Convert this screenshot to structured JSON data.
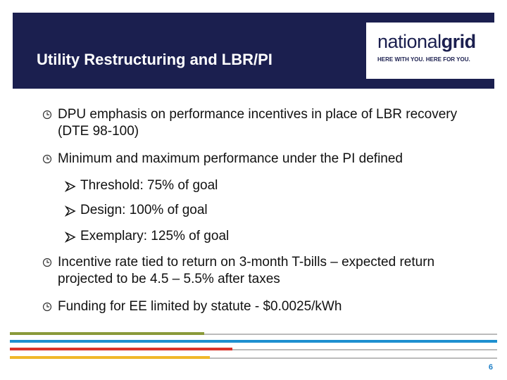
{
  "header": {
    "title": "Utility Restructuring and LBR/PI",
    "logo": {
      "brand_light": "national",
      "brand_bold": "grid",
      "tagline": "HERE WITH YOU. HERE FOR YOU."
    }
  },
  "bullets": [
    {
      "text": "DPU emphasis on performance incentives in place of LBR recovery (DTE 98-100)"
    },
    {
      "text": "Minimum and maximum performance under the PI defined",
      "sub_bullets": [
        "Threshold:  75% of goal",
        "Design:  100% of goal",
        "Exemplary:  125% of goal"
      ]
    },
    {
      "text": "Incentive rate tied to return on 3-month T-bills – expected return projected to be 4.5 – 5.5% after taxes"
    },
    {
      "text": "Funding for EE limited by statute - $0.0025/kWh"
    }
  ],
  "footer": {
    "page_number": "6"
  }
}
